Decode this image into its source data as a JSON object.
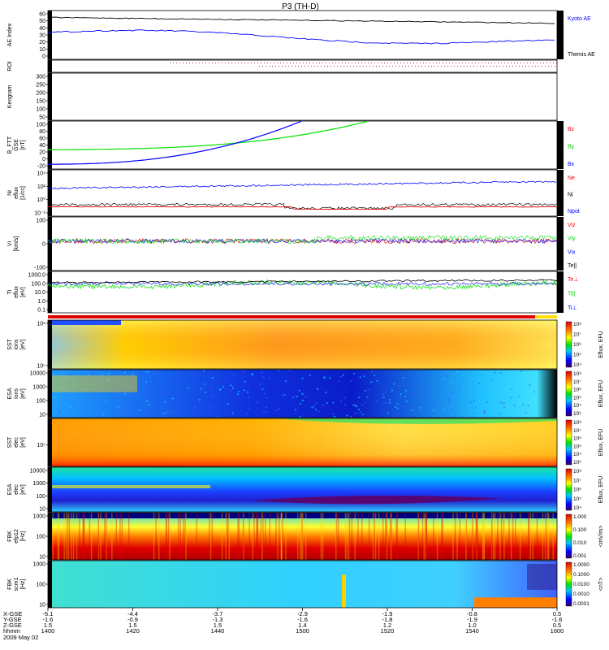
{
  "title": "P3 (TH-D)",
  "footer": {
    "rows": [
      "X-GSE",
      "Y-GSE",
      "Z-GSE",
      "hhmm"
    ],
    "date": "2009 May 02"
  },
  "chart_data": {
    "type": "line",
    "time_ticks": [
      "1400",
      "1420",
      "1440",
      "1500",
      "1520",
      "1540",
      "1600"
    ],
    "ephemeris": {
      "X-GSE": [
        "-5.1",
        "-4.4",
        "-3.7",
        "-2.9",
        "-1.9",
        "-0.8",
        "0.5"
      ],
      "Y-GSE": [
        "-1.6",
        "-0.9",
        "-1.3",
        "-1.6",
        "-1.8",
        "-1.9",
        "-1.6"
      ],
      "Z-GSE": [
        "1.5",
        "1.5",
        "1.5",
        "1.4",
        "1.2",
        "1.0",
        "0.5"
      ]
    },
    "panels": [
      {
        "id": "ae",
        "ylabel": "AE Index",
        "yticks": [
          "60",
          "50",
          "40",
          "30",
          "20",
          "10",
          "0"
        ],
        "legend": [
          {
            "name": "Kyoto AE",
            "color": "#0000ff"
          },
          {
            "name": "Themis AE",
            "color": "#000000"
          }
        ]
      },
      {
        "id": "roi",
        "ylabel": "ROI"
      },
      {
        "id": "keogram",
        "ylabel": "Keogram",
        "yticks": [
          "300",
          "250",
          "200",
          "150",
          "100",
          "50"
        ]
      },
      {
        "id": "bfield",
        "ylabel": [
          "B_FTT",
          "GSE",
          "[nT]"
        ],
        "yticks": [
          "100",
          "80",
          "60",
          "40",
          "20",
          "0",
          "-20"
        ],
        "legend": [
          {
            "name": "Bz",
            "color": "#ff0000"
          },
          {
            "name": "By",
            "color": "#00cc00"
          },
          {
            "name": "Bx",
            "color": "#0000ff"
          }
        ]
      },
      {
        "id": "density",
        "ylabel": [
          "Ni",
          "eflux",
          "[1/cc]"
        ],
        "yticks": [
          "10⁴",
          "10²",
          "10⁰",
          "10⁻²"
        ],
        "legend": [
          {
            "name": "Ne",
            "color": "#ff0000"
          },
          {
            "name": "Ni",
            "color": "#000000"
          },
          {
            "name": "Npot",
            "color": "#0000ff"
          }
        ]
      },
      {
        "id": "velocity",
        "ylabel": [
          "Vi",
          "[km/s]"
        ],
        "yticks": [
          "100",
          "0",
          "-100"
        ],
        "legend": [
          {
            "name": "Viz",
            "color": "#ff0000"
          },
          {
            "name": "Viy",
            "color": "#00cc00"
          },
          {
            "name": "Vix",
            "color": "#0000ff"
          },
          {
            "name": "Te||",
            "color": "#000000"
          }
        ]
      },
      {
        "id": "temp",
        "ylabel": [
          "Ti",
          "eflux",
          "[eV]"
        ],
        "yticks": [
          "1000.0",
          "100.0",
          "10.0",
          "1.0",
          "0.1"
        ],
        "legend": [
          {
            "name": "Te⊥",
            "color": "#ff0000"
          },
          {
            "name": "Ti||",
            "color": "#00cc00"
          },
          {
            "name": "Ti⊥",
            "color": "#0000ff"
          }
        ]
      },
      {
        "id": "sst_i",
        "ylabel": [
          "SST",
          "ions",
          "[eV]"
        ],
        "yticks": [
          "10⁶",
          "10⁵"
        ],
        "cbar": {
          "label": "Eflux, EFU",
          "ticks": [
            "10⁸",
            "10⁷",
            "10⁶",
            "10⁵",
            "10⁴"
          ]
        }
      },
      {
        "id": "esa_i",
        "ylabel": [
          "ESA",
          "ions",
          "[eV]"
        ],
        "yticks": [
          "10000",
          "1000",
          "100",
          "10"
        ],
        "cbar": {
          "label": "Eflux, EFU",
          "ticks": [
            "10⁸",
            "10⁷",
            "10⁶",
            "10⁵",
            "10⁴",
            "10³"
          ]
        }
      },
      {
        "id": "sst_e",
        "ylabel": [
          "SST",
          "elec",
          "[eV]"
        ],
        "yticks": [
          "10⁵"
        ],
        "cbar": {
          "label": "Eflux, EFU",
          "ticks": [
            "10⁸",
            "10⁷",
            "10⁶",
            "10⁵",
            "10⁴",
            "10³"
          ]
        }
      },
      {
        "id": "esa_e",
        "ylabel": [
          "ESA",
          "elec",
          "[eV]"
        ],
        "yticks": [
          "10000",
          "1000",
          "100",
          "10"
        ],
        "cbar": {
          "label": "Eflux, EFU",
          "ticks": [
            "10⁸",
            "10⁷",
            "10⁶",
            "10⁵",
            "10⁴"
          ]
        }
      },
      {
        "id": "fbk_e",
        "ylabel": [
          "FBK",
          "efp12",
          "[Hz]"
        ],
        "yticks": [
          "1000",
          "100",
          "10"
        ],
        "cbar": {
          "label": "<mV/m>",
          "ticks": [
            "1.000",
            "0.100",
            "0.010",
            "0.001"
          ]
        }
      },
      {
        "id": "fbk_b",
        "ylabel": [
          "FBK",
          "scm1",
          "[Hz]"
        ],
        "yticks": [
          "1000",
          "100",
          "10"
        ],
        "cbar": {
          "label": "<nT>",
          "ticks": [
            "1.0000",
            "0.1000",
            "0.0100",
            "0.0010",
            "0.0001"
          ]
        }
      }
    ]
  }
}
